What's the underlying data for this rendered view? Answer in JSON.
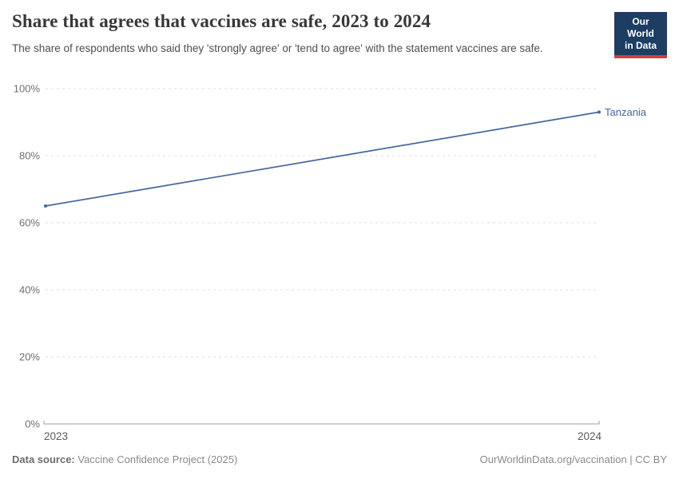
{
  "header": {
    "title": "Share that agrees that vaccines are safe, 2023 to 2024",
    "subtitle": "The share of respondents who said they 'strongly agree' or 'tend to agree' with the statement vaccines are safe.",
    "logo": {
      "line1": "Our World",
      "line2": "in Data",
      "bg_color": "#1d3d63",
      "accent_color": "#d93a3c"
    }
  },
  "chart_data": {
    "type": "line",
    "title": "Share that agrees that vaccines are safe, 2023 to 2024",
    "x": [
      2023,
      2024
    ],
    "series": [
      {
        "name": "Tanzania",
        "values": [
          65,
          93
        ],
        "color": "#4665a0"
      }
    ],
    "xlim": [
      2023,
      2024
    ],
    "ylim": [
      0,
      100
    ],
    "yticks": [
      {
        "value": 0,
        "label": "0%"
      },
      {
        "value": 20,
        "label": "20%"
      },
      {
        "value": 40,
        "label": "40%"
      },
      {
        "value": 60,
        "label": "60%"
      },
      {
        "value": 80,
        "label": "80%"
      },
      {
        "value": 100,
        "label": "100%"
      }
    ],
    "xticks": [
      {
        "value": 2023,
        "label": "2023"
      },
      {
        "value": 2024,
        "label": "2024"
      }
    ],
    "xlabel": "",
    "ylabel": "",
    "grid": "horizontal-dashed",
    "legend": "end-of-line-label",
    "gridline_color": "#dcdcdc",
    "axis_color": "#a1a1a1",
    "tick_label_color": "#6e6e6e"
  },
  "footer": {
    "datasource_label": "Data source:",
    "datasource_value": "Vaccine Confidence Project (2025)",
    "credit": "OurWorldinData.org/vaccination | CC BY"
  }
}
